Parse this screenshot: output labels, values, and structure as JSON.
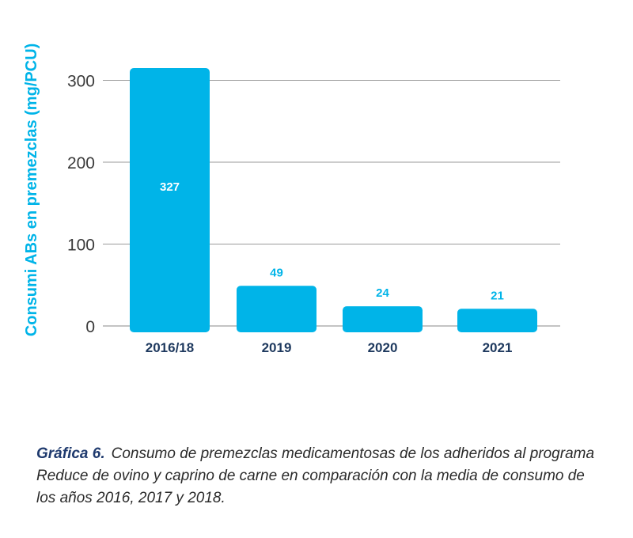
{
  "chart_data": {
    "type": "bar",
    "categories": [
      "2016/18",
      "2019",
      "2020",
      "2021"
    ],
    "values": [
      327,
      49,
      24,
      21
    ],
    "data_labels": [
      "327",
      "49",
      "24",
      "21"
    ],
    "ylabel": "Consumi ABs en premezclas (mg/PCU)",
    "yticks": [
      0,
      100,
      200,
      300
    ],
    "grid": true,
    "bar_color": "#00b4e8",
    "label_color_inside": "#ffffff",
    "label_color_outside": "#00b4e8",
    "ylabel_color": "#00b4e8",
    "category_color": "#1f3a5f"
  },
  "caption": {
    "label": "Gráfica 6.",
    "text": "Consumo de premezclas medicamentosas de los adheridos al programa Reduce de ovino y caprino de carne en comparación con la media de consumo de los años 2016, 2017 y 2018."
  }
}
